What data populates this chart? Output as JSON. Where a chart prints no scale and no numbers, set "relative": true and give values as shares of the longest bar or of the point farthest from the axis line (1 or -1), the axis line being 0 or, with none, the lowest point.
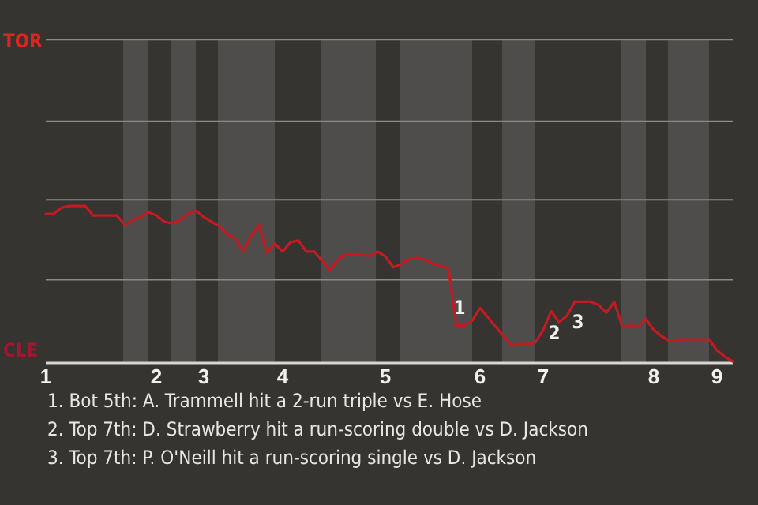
{
  "chart_data": {
    "type": "line",
    "relative": true,
    "categories": [
      "1",
      null,
      null,
      null,
      null,
      null,
      null,
      null,
      null,
      null,
      null,
      null,
      null,
      null,
      "2",
      null,
      null,
      null,
      null,
      null,
      "3",
      null,
      null,
      null,
      null,
      null,
      null,
      null,
      null,
      null,
      "4",
      null,
      null,
      null,
      null,
      null,
      null,
      null,
      null,
      null,
      null,
      null,
      null,
      "5",
      null,
      null,
      null,
      null,
      null,
      null,
      null,
      null,
      null,
      null,
      null,
      "6",
      null,
      null,
      null,
      null,
      null,
      null,
      null,
      "7",
      null,
      null,
      null,
      null,
      null,
      null,
      null,
      null,
      null,
      null,
      null,
      null,
      null,
      "8",
      null,
      null,
      null,
      null,
      null,
      null,
      null,
      "9",
      null,
      null
    ],
    "series": [
      {
        "color": "#c41a22",
        "values": [
          0.95,
          0.95,
          0.99,
          1,
          1,
          1,
          0.94,
          0.94,
          0.94,
          0.94,
          0.88,
          0.91,
          0.93,
          0.96,
          0.94,
          0.9,
          0.89,
          0.91,
          0.95,
          0.97,
          0.93,
          0.9,
          0.87,
          0.82,
          0.79,
          0.71,
          0.81,
          0.88,
          0.7,
          0.76,
          0.71,
          0.77,
          0.78,
          0.71,
          0.71,
          0.65,
          0.59,
          0.66,
          0.69,
          0.69,
          0.69,
          0.68,
          0.71,
          0.68,
          0.61,
          0.63,
          0.66,
          0.67,
          0.66,
          0.63,
          0.62,
          0.6,
          0.24,
          0.24,
          0.27,
          0.35,
          0.29,
          0.23,
          0.17,
          0.11,
          0.12,
          0.12,
          0.13,
          0.21,
          0.33,
          0.26,
          0.3,
          0.39,
          0.39,
          0.39,
          0.37,
          0.32,
          0.39,
          0.23,
          0.24,
          0.23,
          0.28,
          0.21,
          0.17,
          0.14,
          0.15,
          0.15,
          0.15,
          0.15,
          0.15,
          0.08,
          0.04,
          0.01
        ]
      }
    ],
    "marker": "none",
    "ref_lines": [
      {
        "axis": "y",
        "value": 0.53,
        "label": null,
        "color": "#8c8a86"
      },
      {
        "axis": "y",
        "value": 1.04,
        "label": null,
        "color": "#8c8a86"
      },
      {
        "axis": "y",
        "value": 1.54,
        "label": null,
        "color": "#8c8a86"
      },
      {
        "axis": "y",
        "value": 2.06,
        "label": null,
        "color": "#8c8a86"
      }
    ],
    "annotations": [
      "TOR",
      "CLE",
      "1",
      "2",
      "3",
      "1. Bot 5th: A. Trammell hit a 2-run triple vs E. Hose",
      "2. Top 7th: D. Strawberry hit a run-scoring double vs D. Jackson",
      "3. Top 7th: P. O'Neill hit a run-scoring single vs D. Jackson"
    ]
  }
}
